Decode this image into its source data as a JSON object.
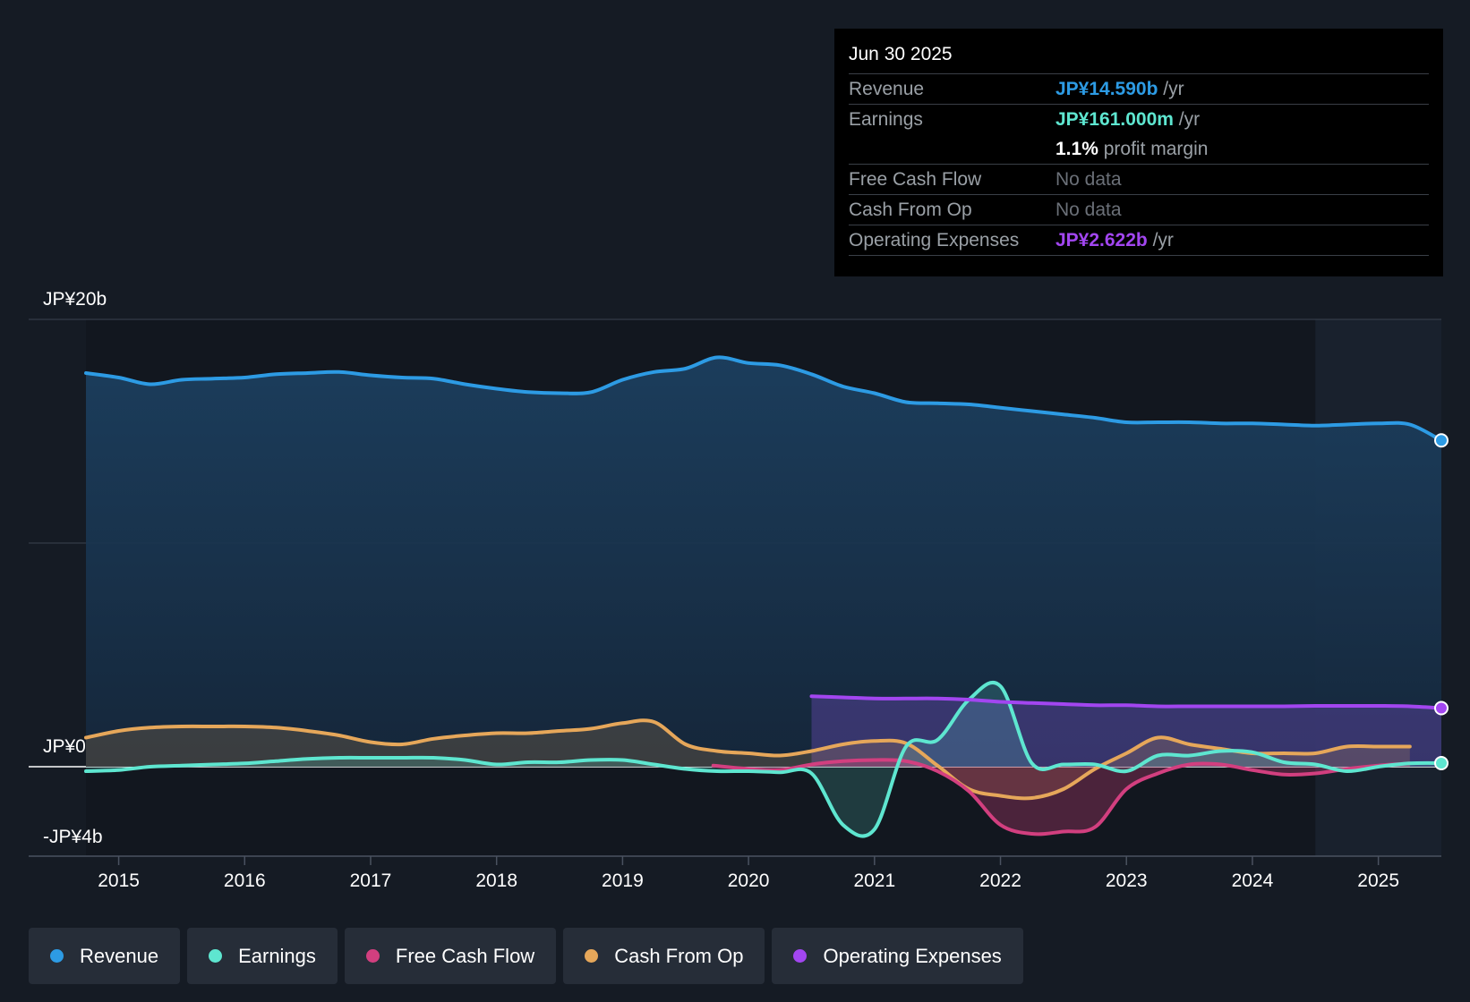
{
  "colors": {
    "revenue": "#2d9be4",
    "earnings": "#5ee6d0",
    "free_cash_flow": "#d23f7f",
    "cash_from_op": "#e6a75a",
    "operating_expenses": "#a246f0"
  },
  "tooltip": {
    "date": "Jun 30 2025",
    "rows": {
      "revenue": {
        "label": "Revenue",
        "value": "JP¥14.590b",
        "unit": "/yr"
      },
      "earnings": {
        "label": "Earnings",
        "value": "JP¥161.000m",
        "unit": "/yr"
      },
      "profit_margin": {
        "value": "1.1%",
        "unit": "profit margin"
      },
      "free_cash_flow": {
        "label": "Free Cash Flow",
        "value": "No data"
      },
      "cash_from_op": {
        "label": "Cash From Op",
        "value": "No data"
      },
      "operating_expenses": {
        "label": "Operating Expenses",
        "value": "JP¥2.622b",
        "unit": "/yr"
      }
    }
  },
  "legend": [
    {
      "key": "revenue",
      "label": "Revenue"
    },
    {
      "key": "earnings",
      "label": "Earnings"
    },
    {
      "key": "free_cash_flow",
      "label": "Free Cash Flow"
    },
    {
      "key": "cash_from_op",
      "label": "Cash From Op"
    },
    {
      "key": "operating_expenses",
      "label": "Operating Expenses"
    }
  ],
  "chart_data": {
    "type": "line",
    "title": "",
    "xlabel": "",
    "ylabel": "",
    "ylim": [
      -4,
      20
    ],
    "xlim": [
      2014.74,
      2025.5
    ],
    "y_tick_labels": [
      {
        "value": 20,
        "label": "JP¥20b"
      },
      {
        "value": 0,
        "label": "JP¥0"
      },
      {
        "value": -4,
        "label": "-JP¥4b"
      }
    ],
    "gridlines": [
      20,
      10,
      0
    ],
    "x_ticks": [
      2015,
      2016,
      2017,
      2018,
      2019,
      2020,
      2021,
      2022,
      2023,
      2024,
      2025
    ],
    "x_tick_labels": [
      "2015",
      "2016",
      "2017",
      "2018",
      "2019",
      "2020",
      "2021",
      "2022",
      "2023",
      "2024",
      "2025"
    ],
    "forecast_region_start": 2024.5,
    "series": [
      {
        "name": "Revenue",
        "key": "revenue",
        "unit": "JP¥ billions",
        "x": [
          2014.74,
          2015.0,
          2015.25,
          2015.5,
          2015.75,
          2016.0,
          2016.25,
          2016.5,
          2016.75,
          2017.0,
          2017.25,
          2017.5,
          2017.75,
          2018.0,
          2018.25,
          2018.5,
          2018.75,
          2019.0,
          2019.25,
          2019.5,
          2019.75,
          2020.0,
          2020.25,
          2020.5,
          2020.75,
          2021.0,
          2021.25,
          2021.5,
          2021.75,
          2022.0,
          2022.25,
          2022.5,
          2022.75,
          2023.0,
          2023.25,
          2023.5,
          2023.75,
          2024.0,
          2024.25,
          2024.5,
          2024.75,
          2025.0,
          2025.25,
          2025.5
        ],
        "values": [
          17.6,
          17.4,
          17.1,
          17.3,
          17.35,
          17.4,
          17.55,
          17.6,
          17.65,
          17.5,
          17.4,
          17.35,
          17.1,
          16.9,
          16.75,
          16.7,
          16.75,
          17.3,
          17.65,
          17.8,
          18.3,
          18.05,
          17.95,
          17.55,
          17.0,
          16.7,
          16.3,
          16.25,
          16.2,
          16.05,
          15.9,
          15.75,
          15.6,
          15.4,
          15.4,
          15.4,
          15.35,
          15.35,
          15.3,
          15.25,
          15.3,
          15.35,
          15.3,
          14.59
        ]
      },
      {
        "name": "Earnings",
        "key": "earnings",
        "unit": "JP¥ billions",
        "x": [
          2014.74,
          2015.0,
          2015.25,
          2015.5,
          2015.75,
          2016.0,
          2016.25,
          2016.5,
          2016.75,
          2017.0,
          2017.25,
          2017.5,
          2017.75,
          2018.0,
          2018.25,
          2018.5,
          2018.75,
          2019.0,
          2019.25,
          2019.5,
          2019.75,
          2020.0,
          2020.25,
          2020.5,
          2020.75,
          2021.0,
          2021.25,
          2021.5,
          2021.75,
          2022.0,
          2022.25,
          2022.5,
          2022.75,
          2023.0,
          2023.25,
          2023.5,
          2023.75,
          2024.0,
          2024.25,
          2024.5,
          2024.75,
          2025.0,
          2025.25,
          2025.5
        ],
        "values": [
          -0.2,
          -0.15,
          0.0,
          0.05,
          0.1,
          0.15,
          0.25,
          0.35,
          0.4,
          0.4,
          0.4,
          0.4,
          0.3,
          0.1,
          0.2,
          0.2,
          0.3,
          0.3,
          0.1,
          -0.1,
          -0.2,
          -0.2,
          -0.25,
          -0.3,
          -2.6,
          -2.8,
          0.9,
          1.2,
          3.0,
          3.6,
          0.15,
          0.1,
          0.1,
          -0.2,
          0.5,
          0.5,
          0.7,
          0.65,
          0.2,
          0.1,
          -0.2,
          0.0,
          0.15,
          0.16
        ]
      },
      {
        "name": "Free Cash Flow",
        "key": "free_cash_flow",
        "unit": "JP¥ billions",
        "x": [
          2019.72,
          2020.0,
          2020.25,
          2020.5,
          2020.75,
          2021.0,
          2021.25,
          2021.5,
          2021.75,
          2022.0,
          2022.25,
          2022.5,
          2022.75,
          2023.0,
          2023.25,
          2023.5,
          2023.75,
          2024.0,
          2024.25,
          2024.5,
          2024.75,
          2025.0,
          2025.25
        ],
        "values": [
          0.05,
          -0.1,
          -0.15,
          0.1,
          0.25,
          0.3,
          0.25,
          -0.2,
          -1.1,
          -2.6,
          -3.0,
          -2.9,
          -2.7,
          -1.0,
          -0.3,
          0.1,
          0.1,
          -0.15,
          -0.35,
          -0.3,
          -0.1,
          0.05,
          0.15
        ]
      },
      {
        "name": "Cash From Op",
        "key": "cash_from_op",
        "unit": "JP¥ billions",
        "x": [
          2014.74,
          2015.0,
          2015.25,
          2015.5,
          2015.75,
          2016.0,
          2016.25,
          2016.5,
          2016.75,
          2017.0,
          2017.25,
          2017.5,
          2017.75,
          2018.0,
          2018.25,
          2018.5,
          2018.75,
          2019.0,
          2019.25,
          2019.5,
          2019.75,
          2020.0,
          2020.25,
          2020.5,
          2020.75,
          2021.0,
          2021.25,
          2021.5,
          2021.75,
          2022.0,
          2022.25,
          2022.5,
          2022.75,
          2023.0,
          2023.25,
          2023.5,
          2023.75,
          2024.0,
          2024.25,
          2024.5,
          2024.75,
          2025.0,
          2025.25
        ],
        "values": [
          1.3,
          1.6,
          1.75,
          1.8,
          1.8,
          1.8,
          1.75,
          1.6,
          1.4,
          1.1,
          1.0,
          1.25,
          1.4,
          1.5,
          1.5,
          1.6,
          1.7,
          1.95,
          2.0,
          1.0,
          0.7,
          0.6,
          0.5,
          0.7,
          1.0,
          1.15,
          1.05,
          0.05,
          -1.0,
          -1.3,
          -1.4,
          -1.0,
          -0.1,
          0.6,
          1.3,
          1.0,
          0.8,
          0.6,
          0.6,
          0.6,
          0.9,
          0.9,
          0.9
        ]
      },
      {
        "name": "Operating Expenses",
        "key": "operating_expenses",
        "unit": "JP¥ billions",
        "x": [
          2020.5,
          2020.75,
          2021.0,
          2021.25,
          2021.5,
          2021.75,
          2022.0,
          2022.25,
          2022.5,
          2022.75,
          2023.0,
          2023.25,
          2023.5,
          2023.75,
          2024.0,
          2024.25,
          2024.5,
          2024.75,
          2025.0,
          2025.25,
          2025.5
        ],
        "values": [
          3.15,
          3.1,
          3.05,
          3.05,
          3.05,
          3.0,
          2.9,
          2.85,
          2.8,
          2.75,
          2.75,
          2.7,
          2.7,
          2.7,
          2.7,
          2.7,
          2.72,
          2.72,
          2.72,
          2.7,
          2.62
        ]
      }
    ]
  }
}
